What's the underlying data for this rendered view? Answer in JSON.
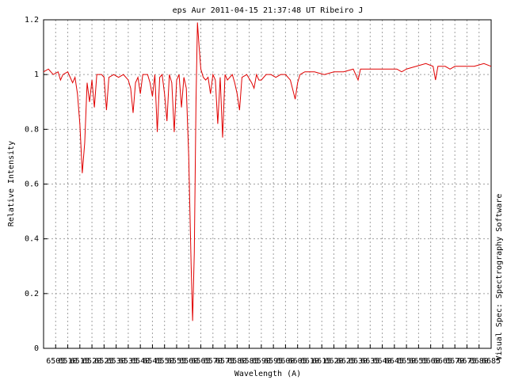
{
  "chart_data": {
    "type": "line",
    "title": "eps Aur 2011-04-15  21:37:48 UT Ribeiro J",
    "x_label": "Wavelength (A)",
    "y_label": "Relative Intensity",
    "credit": "Visual Spec: Spectrography Software",
    "color": "#e00000",
    "grid": true,
    "xlim": [
      6500,
      6685
    ],
    "ylim": [
      0,
      1.2
    ],
    "xticks": [
      6505,
      6510,
      6515,
      6520,
      6525,
      6530,
      6535,
      6540,
      6545,
      6550,
      6555,
      6560,
      6565,
      6570,
      6575,
      6580,
      6585,
      6590,
      6595,
      6600,
      6605,
      6610,
      6615,
      6620,
      6625,
      6630,
      6635,
      6640,
      6645,
      6650,
      6655,
      6660,
      6665,
      6670,
      6675,
      6680,
      6685
    ],
    "yticks": [
      0,
      0.2,
      0.4,
      0.6,
      0.8,
      1,
      1.2
    ],
    "x": [
      6500,
      6502,
      6504,
      6506,
      6507,
      6508,
      6510,
      6511,
      6512,
      6513,
      6514,
      6515,
      6516,
      6517,
      6518,
      6519,
      6520,
      6521,
      6522,
      6524,
      6525,
      6526,
      6527,
      6529,
      6531,
      6533,
      6535,
      6536,
      6537,
      6538,
      6539,
      6540,
      6541,
      6543,
      6544,
      6545,
      6546,
      6547,
      6548,
      6549,
      6550,
      6551,
      6552,
      6553,
      6554,
      6555,
      6556,
      6557,
      6558,
      6559,
      6560,
      6561,
      6561.6,
      6562.3,
      6563,
      6563.6,
      6564.3,
      6565,
      6566,
      6567,
      6568,
      6569,
      6570,
      6571,
      6572,
      6573,
      6574,
      6575,
      6576,
      6578,
      6579,
      6580,
      6581,
      6582,
      6584,
      6586,
      6587,
      6588,
      6589,
      6590,
      6592,
      6594,
      6596,
      6598,
      6600,
      6602,
      6604,
      6605,
      6606,
      6608,
      6612,
      6616,
      6620,
      6624,
      6628,
      6630,
      6631,
      6634,
      6638,
      6642,
      6646,
      6648,
      6650,
      6654,
      6658,
      6661,
      6662,
      6663,
      6666,
      6668,
      6670,
      6674,
      6678,
      6682,
      6685
    ],
    "values": [
      1.01,
      1.02,
      1.0,
      1.01,
      0.98,
      1.0,
      1.01,
      0.99,
      0.97,
      0.99,
      0.93,
      0.82,
      0.64,
      0.75,
      0.97,
      0.9,
      0.98,
      0.88,
      1.0,
      1.0,
      0.99,
      0.87,
      0.99,
      1.0,
      0.99,
      1.0,
      0.98,
      0.95,
      0.86,
      0.97,
      0.99,
      0.93,
      1.0,
      1.0,
      0.97,
      0.92,
      1.0,
      0.79,
      0.99,
      1.0,
      0.93,
      0.83,
      1.0,
      0.97,
      0.79,
      0.98,
      1.0,
      0.88,
      0.99,
      0.95,
      0.7,
      0.3,
      0.1,
      0.35,
      0.9,
      1.19,
      1.1,
      1.02,
      0.99,
      0.98,
      0.99,
      0.93,
      1.0,
      0.98,
      0.82,
      0.99,
      0.77,
      1.0,
      0.98,
      1.0,
      0.97,
      0.93,
      0.87,
      0.99,
      1.0,
      0.97,
      0.95,
      1.0,
      0.98,
      0.98,
      1.0,
      1.0,
      0.99,
      1.0,
      1.0,
      0.98,
      0.91,
      0.97,
      1.0,
      1.01,
      1.01,
      1.0,
      1.01,
      1.01,
      1.02,
      0.98,
      1.02,
      1.02,
      1.02,
      1.02,
      1.02,
      1.01,
      1.02,
      1.03,
      1.04,
      1.03,
      0.98,
      1.03,
      1.03,
      1.02,
      1.03,
      1.03,
      1.03,
      1.04,
      1.03
    ]
  }
}
